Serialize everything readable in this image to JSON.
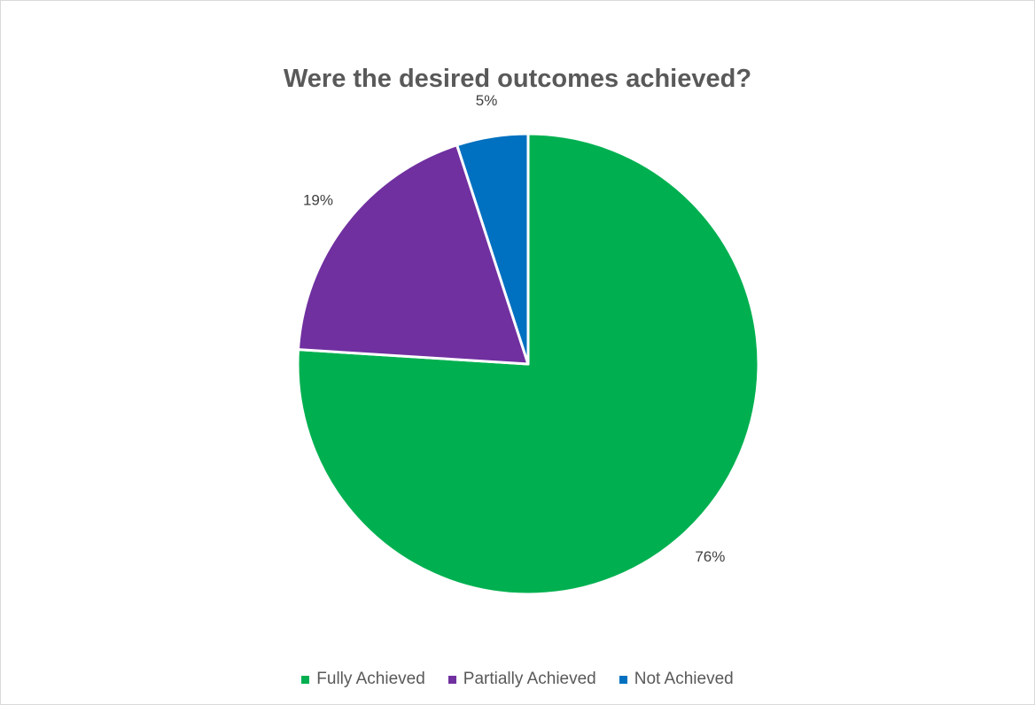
{
  "chart_data": {
    "type": "pie",
    "title": "Were the desired outcomes achieved?",
    "categories": [
      "Fully Achieved",
      "Partially Achieved",
      "Not Achieved"
    ],
    "values": [
      76,
      19,
      5
    ],
    "data_labels": [
      "76%",
      "19%",
      "5%"
    ],
    "colors": [
      "#00b050",
      "#7030a0",
      "#0070c0"
    ],
    "start_angle_deg": 0,
    "direction": "clockwise",
    "legend": "bottom"
  }
}
